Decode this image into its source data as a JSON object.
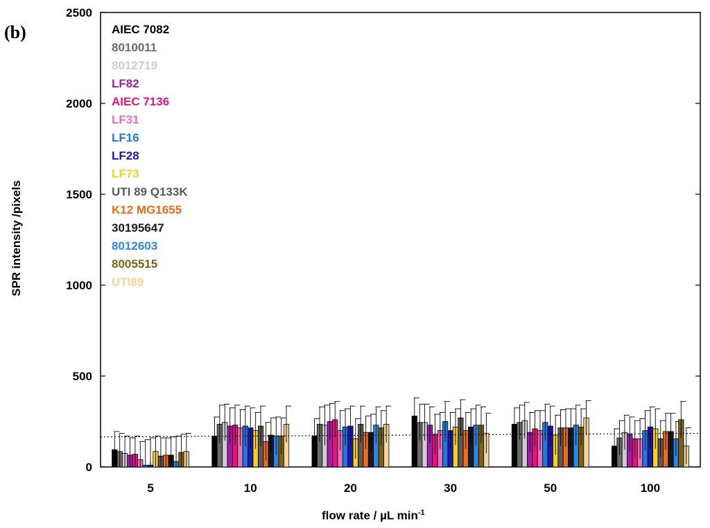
{
  "chart_data": {
    "type": "bar",
    "panel_label": "(b)",
    "xlabel": "flow rate / µL min",
    "xlabel_superscript": "-1",
    "ylabel": "SPR intensity /pixels",
    "ylim": [
      0,
      2500
    ],
    "yticks": [
      0,
      500,
      1000,
      1500,
      2000,
      2500
    ],
    "categories": [
      "5",
      "10",
      "20",
      "30",
      "50",
      "100"
    ],
    "threshold": {
      "style": "dotted",
      "start": 165,
      "end": 185
    },
    "series": [
      {
        "name": "AIEC 7082",
        "color": "#000000",
        "values": [
          95,
          170,
          170,
          280,
          235,
          115
        ],
        "errors": [
          100,
          105,
          95,
          100,
          90,
          95
        ]
      },
      {
        "name": "8010011",
        "color": "#6b6b6b",
        "values": [
          85,
          235,
          235,
          245,
          245,
          160
        ],
        "errors": [
          100,
          105,
          95,
          100,
          95,
          95
        ]
      },
      {
        "name": "8012719",
        "color": "#cccccc",
        "values": [
          75,
          245,
          230,
          245,
          255,
          190
        ],
        "errors": [
          95,
          100,
          110,
          100,
          100,
          95
        ]
      },
      {
        "name": "LF82",
        "color": "#a21caf",
        "values": [
          65,
          225,
          250,
          230,
          190,
          180
        ],
        "errors": [
          95,
          100,
          100,
          100,
          110,
          95
        ]
      },
      {
        "name": "AIEC 7136",
        "color": "#e6137f",
        "values": [
          70,
          230,
          260,
          180,
          210,
          155
        ],
        "errors": [
          100,
          110,
          100,
          110,
          100,
          100
        ]
      },
      {
        "name": "LF31",
        "color": "#f06cb8",
        "values": [
          40,
          215,
          200,
          200,
          200,
          155
        ],
        "errors": [
          100,
          100,
          110,
          100,
          110,
          110
        ]
      },
      {
        "name": "LF16",
        "color": "#1f7ae0",
        "values": [
          10,
          225,
          220,
          250,
          245,
          200
        ],
        "errors": [
          140,
          110,
          100,
          110,
          100,
          110
        ]
      },
      {
        "name": "LF28",
        "color": "#1818b8",
        "values": [
          10,
          215,
          225,
          200,
          225,
          220
        ],
        "errors": [
          150,
          110,
          110,
          100,
          110,
          110
        ]
      },
      {
        "name": "LF73",
        "color": "#f5d020",
        "values": [
          85,
          200,
          155,
          220,
          175,
          210
        ],
        "errors": [
          85,
          100,
          110,
          100,
          110,
          110
        ]
      },
      {
        "name": "UTI 89 Q133K",
        "color": "#5a5a5a",
        "values": [
          60,
          225,
          235,
          270,
          215,
          155
        ],
        "errors": [
          100,
          110,
          100,
          100,
          100,
          100
        ]
      },
      {
        "name": "K12 MG1655",
        "color": "#f26a1b",
        "values": [
          65,
          140,
          190,
          200,
          215,
          195
        ],
        "errors": [
          95,
          105,
          90,
          100,
          105,
          100
        ]
      },
      {
        "name": "30195647",
        "color": "#1a1a1a",
        "values": [
          65,
          175,
          190,
          220,
          215,
          195
        ],
        "errors": [
          100,
          95,
          100,
          100,
          105,
          100
        ]
      },
      {
        "name": "8012603",
        "color": "#2e84e8",
        "values": [
          30,
          170,
          230,
          230,
          230,
          155
        ],
        "errors": [
          140,
          105,
          100,
          110,
          110,
          95
        ]
      },
      {
        "name": "8005515",
        "color": "#7a6314",
        "values": [
          80,
          170,
          215,
          230,
          220,
          260
        ],
        "errors": [
          100,
          100,
          95,
          100,
          100,
          100
        ]
      },
      {
        "name": "UTI89",
        "color": "#f6d39a",
        "values": [
          85,
          235,
          235,
          185,
          270,
          115
        ],
        "errors": [
          100,
          100,
          100,
          110,
          95,
          100
        ]
      }
    ]
  }
}
